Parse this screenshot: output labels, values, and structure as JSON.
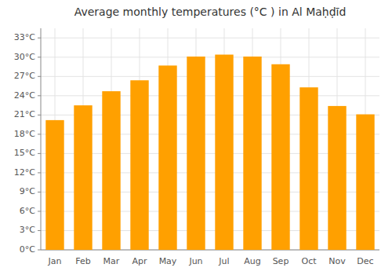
{
  "chart_data": {
    "type": "bar",
    "title": "Average monthly temperatures (°C ) in Al Maḥḍīd",
    "categories": [
      "Jan",
      "Feb",
      "Mar",
      "Apr",
      "May",
      "Jun",
      "Jul",
      "Aug",
      "Sep",
      "Oct",
      "Nov",
      "Dec"
    ],
    "values": [
      20.2,
      22.5,
      24.7,
      26.4,
      28.7,
      30.1,
      30.4,
      30.1,
      28.9,
      25.3,
      22.4,
      21.1
    ],
    "color": "#FFA000",
    "ylim": [
      0,
      34.5
    ],
    "yticks": [
      {
        "value": 0,
        "label": "0°C"
      },
      {
        "value": 3,
        "label": "3°C"
      },
      {
        "value": 6,
        "label": "6°C"
      },
      {
        "value": 9,
        "label": "9°C"
      },
      {
        "value": 12,
        "label": "12°C"
      },
      {
        "value": 15,
        "label": "15°C"
      },
      {
        "value": 18,
        "label": "18°C"
      },
      {
        "value": 21,
        "label": "21°C"
      },
      {
        "value": 24,
        "label": "24°C"
      },
      {
        "value": 27,
        "label": "27°C"
      },
      {
        "value": 30,
        "label": "30°C"
      },
      {
        "value": 33,
        "label": "33°C"
      }
    ],
    "grid": true
  }
}
